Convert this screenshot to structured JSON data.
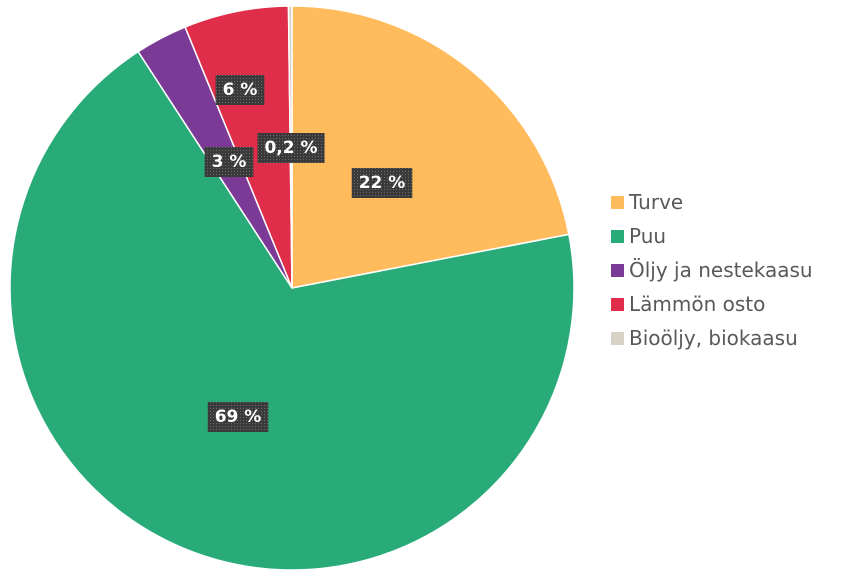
{
  "chart_data": {
    "type": "pie",
    "title": "",
    "slices": [
      {
        "name": "Turve",
        "value": 22,
        "label": "22 %",
        "color": "#FFBB5C"
      },
      {
        "name": "Puu",
        "value": 69,
        "label": "69 %",
        "color": "#28AB78"
      },
      {
        "name": "Öljy ja nestekaasu",
        "value": 3,
        "label": "3 %",
        "color": "#7A3A96"
      },
      {
        "name": "Lämmön osto",
        "value": 6,
        "label": "6 %",
        "color": "#E02D4A"
      },
      {
        "name": "Bioöljy, biokaasu",
        "value": 0.2,
        "label": "0,2 %",
        "color": "#D7D2C6"
      }
    ],
    "legend": "right",
    "start_angle": "12 o'clock, clockwise"
  }
}
